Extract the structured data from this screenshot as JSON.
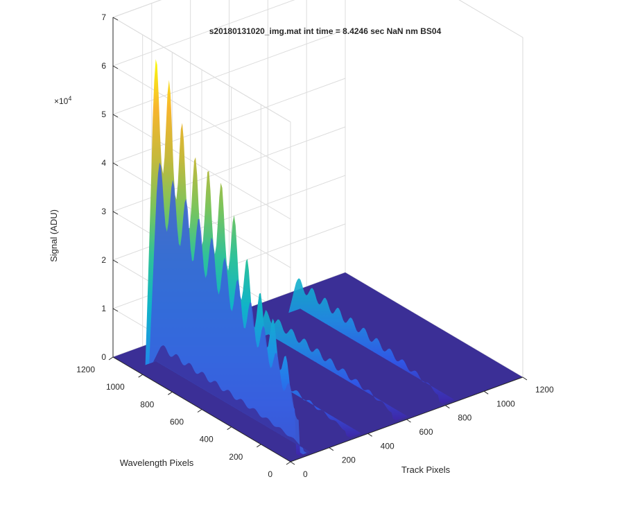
{
  "chart_data": {
    "type": "surface",
    "title": "s20180131020_img.mat int time = 8.4246 sec  NaN nm BS04",
    "xlabel": "Track Pixels",
    "ylabel": "Wavelength Pixels",
    "zlabel": "Signal (ADU)",
    "z_exponent_label": "×10",
    "z_exponent_power": "4",
    "xlim": [
      0,
      1200
    ],
    "ylim": [
      0,
      1200
    ],
    "zlim": [
      0,
      70000
    ],
    "x_ticks": [
      "0",
      "200",
      "400",
      "600",
      "800",
      "1000",
      "1200"
    ],
    "y_ticks": [
      "0",
      "200",
      "400",
      "600",
      "800",
      "1000",
      "1200"
    ],
    "z_ticks": [
      "0",
      "1",
      "2",
      "3",
      "4",
      "5",
      "6",
      "7"
    ],
    "grid": true,
    "colormap": "parula",
    "colormap_stops": [
      "#3e26a8",
      "#2f5bee",
      "#1e90e6",
      "#10b3c8",
      "#2ec29a",
      "#7bc45c",
      "#c5b93b",
      "#f7b52e",
      "#f9fb0e"
    ],
    "floor_color": "#3b2f96",
    "series": [
      {
        "name": "",
        "track_center": 60,
        "peak": 60000,
        "peak_wavelength": 1000
      },
      {
        "name": "",
        "track_center": 320,
        "peak": 5000,
        "peak_wavelength": 800
      },
      {
        "name": "",
        "track_center": 560,
        "peak": 7000,
        "peak_wavelength": 900
      },
      {
        "name": "",
        "track_center": 800,
        "peak": 8500,
        "peak_wavelength": 1000
      }
    ]
  }
}
